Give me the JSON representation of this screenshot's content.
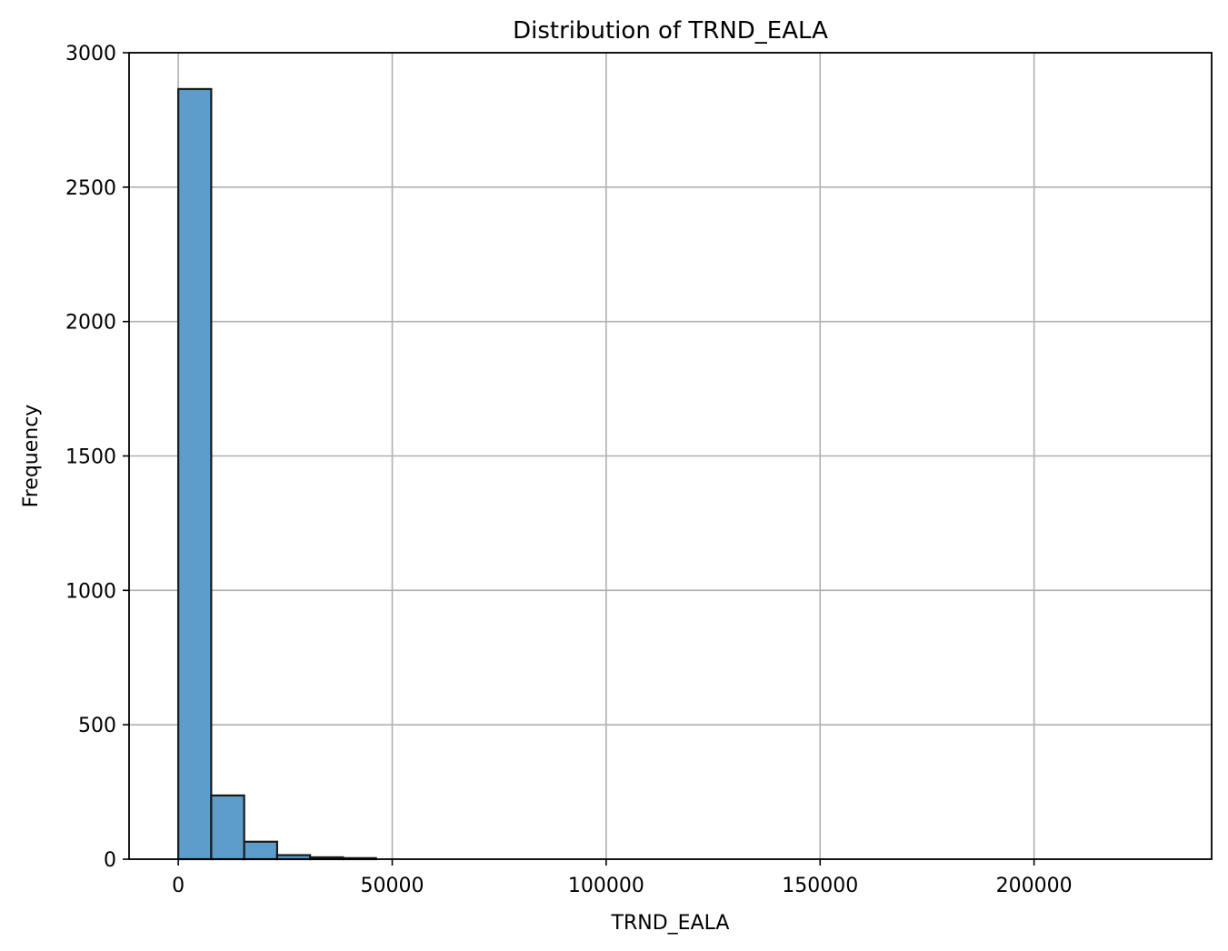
{
  "chart_data": {
    "type": "bar",
    "title": "Distribution of TRND_EALA",
    "xlabel": "TRND_EALA",
    "ylabel": "Frequency",
    "bar_color": "#5c9dcc",
    "edge_color": "#1a1a1a",
    "grid": true,
    "xlim": [
      -11500,
      241500
    ],
    "ylim": [
      0,
      3000
    ],
    "xticks": [
      0,
      50000,
      100000,
      150000,
      200000
    ],
    "xtick_labels": [
      "0",
      "50000",
      "100000",
      "150000",
      "200000"
    ],
    "yticks": [
      0,
      500,
      1000,
      1500,
      2000,
      2500,
      3000
    ],
    "ytick_labels": [
      "0",
      "500",
      "1000",
      "1500",
      "2000",
      "2500",
      "3000"
    ],
    "bins": [
      {
        "x0": 0,
        "x1": 7700,
        "count": 2865
      },
      {
        "x0": 7700,
        "x1": 15400,
        "count": 237
      },
      {
        "x0": 15400,
        "x1": 23100,
        "count": 65
      },
      {
        "x0": 23100,
        "x1": 30800,
        "count": 15
      },
      {
        "x0": 30800,
        "x1": 38500,
        "count": 7
      },
      {
        "x0": 38500,
        "x1": 46200,
        "count": 4
      }
    ]
  }
}
